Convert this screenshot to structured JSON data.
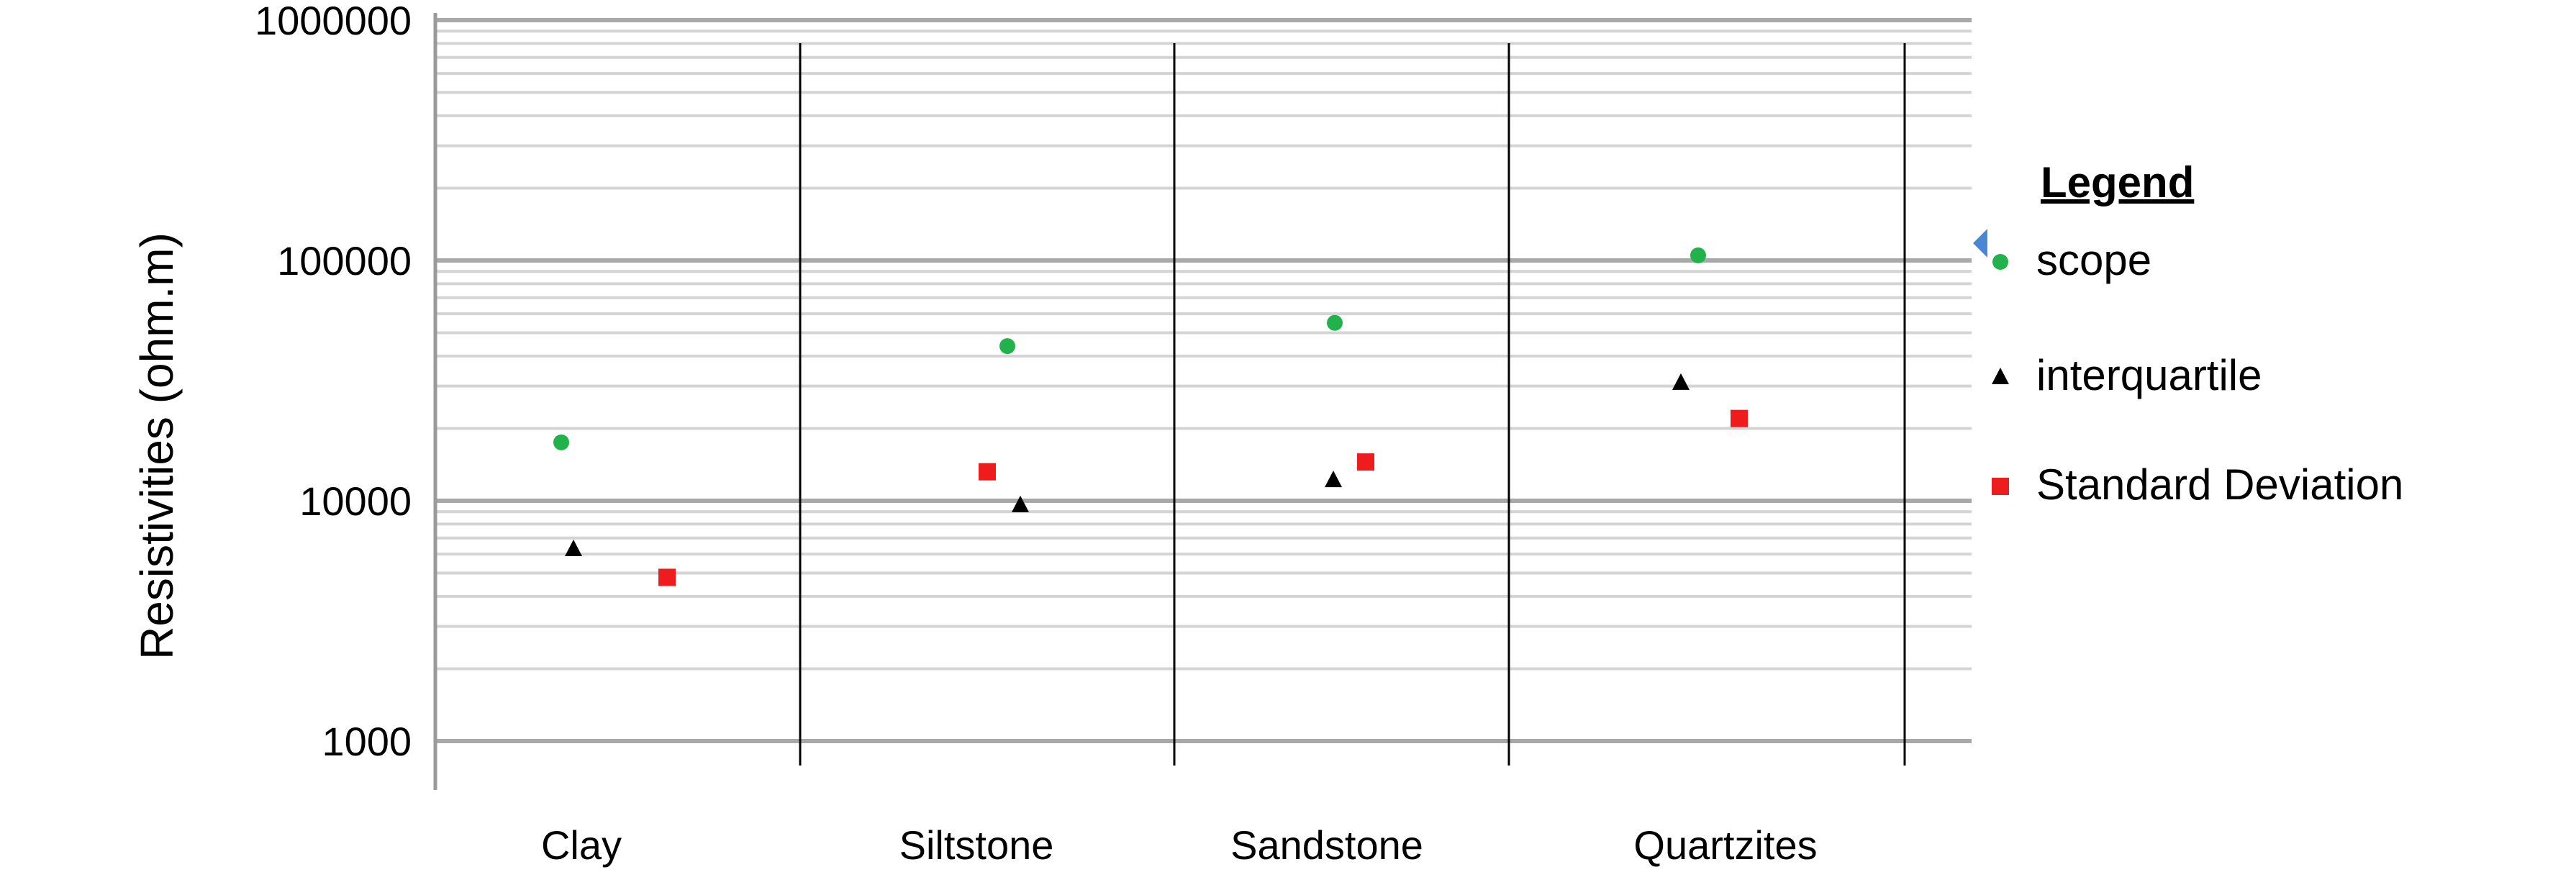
{
  "chart_data": {
    "type": "scatter",
    "title": "",
    "xlabel": "",
    "ylabel": "Resistivities (ohm.m)",
    "y_scale": "log",
    "ylim": [
      1000,
      1000000
    ],
    "y_ticks": [
      "1000",
      "10000",
      "100000",
      "1000000"
    ],
    "grid": "horizontal minor and major",
    "legend_title": "Legend",
    "legend_position": "right",
    "categories": [
      "Clay",
      "Siltstone",
      "Sandstone",
      "Quartzites"
    ],
    "series": [
      {
        "name": "scope",
        "marker": "circle",
        "color": "#22b24c",
        "values": [
          17500,
          44000,
          55000,
          105000
        ]
      },
      {
        "name": "interquartile",
        "marker": "triangle",
        "color": "#000000",
        "values": [
          6300,
          9600,
          12200,
          31000
        ]
      },
      {
        "name": "Standard Deviation",
        "marker": "square",
        "color": "#ee1c1c",
        "values": [
          4800,
          13200,
          14500,
          22000
        ]
      }
    ]
  }
}
